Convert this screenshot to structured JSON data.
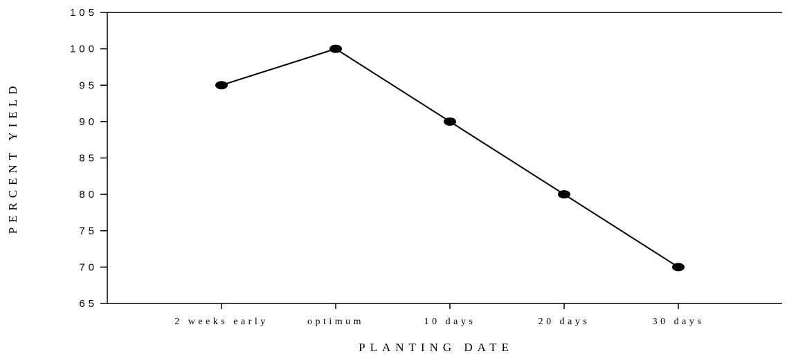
{
  "chart_data": {
    "type": "line",
    "title": "",
    "xlabel": "PLANTING DATE",
    "ylabel": "PERCENT YIELD",
    "categories": [
      "2 weeks early",
      "optimum",
      "10 days",
      "20 days",
      "30 days"
    ],
    "series": [
      {
        "values": [
          95,
          100,
          90,
          80,
          70
        ]
      }
    ],
    "ylim": [
      65,
      105
    ],
    "yticks": [
      65,
      70,
      75,
      80,
      85,
      90,
      95,
      100,
      105
    ],
    "grid": false,
    "legend": "none",
    "colors": {
      "line": "#000000",
      "marker": "#000000",
      "axis": "#000000"
    }
  }
}
